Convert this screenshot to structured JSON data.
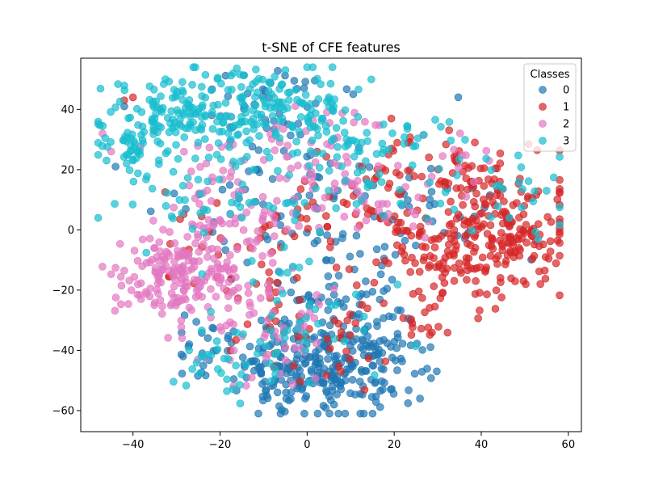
{
  "chart_data": {
    "type": "scatter",
    "title": "t-SNE of CFE features",
    "xlabel": "",
    "ylabel": "",
    "xlim": [
      -52,
      63
    ],
    "ylim": [
      -67,
      57
    ],
    "xticks": [
      -40,
      -20,
      0,
      20,
      40,
      60
    ],
    "yticks": [
      -60,
      -40,
      -20,
      0,
      20,
      40
    ],
    "grid": false,
    "legend": {
      "title": "Classes",
      "placement": "top-right"
    },
    "series": [
      {
        "name": "0",
        "color": "#1f77b4",
        "clusters": [
          {
            "cx": 5,
            "cy": -48,
            "sx": 9,
            "sy": 8,
            "n": 220
          },
          {
            "cx": 18,
            "cy": -40,
            "sx": 6,
            "sy": 6,
            "n": 40
          },
          {
            "cx": -8,
            "cy": -45,
            "sx": 6,
            "sy": 6,
            "n": 40
          },
          {
            "cx": 5,
            "cy": -20,
            "sx": 8,
            "sy": 8,
            "n": 60
          },
          {
            "cx": 0,
            "cy": 5,
            "sx": 14,
            "sy": 14,
            "n": 70
          },
          {
            "cx": -5,
            "cy": 40,
            "sx": 10,
            "sy": 8,
            "n": 40
          },
          {
            "cx": -25,
            "cy": -38,
            "sx": 4,
            "sy": 6,
            "n": 20
          },
          {
            "cx": 30,
            "cy": 5,
            "sx": 8,
            "sy": 8,
            "n": 20
          }
        ],
        "points": [
          [
            -44,
            21
          ],
          [
            -42,
            41
          ],
          [
            15,
            -45
          ]
        ]
      },
      {
        "name": "1",
        "color": "#d62728",
        "clusters": [
          {
            "cx": 45,
            "cy": 0,
            "sx": 8,
            "sy": 9,
            "n": 180
          },
          {
            "cx": 30,
            "cy": -12,
            "sx": 7,
            "sy": 7,
            "n": 80
          },
          {
            "cx": 38,
            "cy": 18,
            "sx": 6,
            "sy": 5,
            "n": 40
          },
          {
            "cx": 15,
            "cy": 10,
            "sx": 9,
            "sy": 9,
            "n": 70
          },
          {
            "cx": 5,
            "cy": -35,
            "sx": 8,
            "sy": 8,
            "n": 40
          },
          {
            "cx": -15,
            "cy": -5,
            "sx": 10,
            "sy": 12,
            "n": 40
          },
          {
            "cx": 28,
            "cy": -30,
            "sx": 4,
            "sy": 4,
            "n": 15
          },
          {
            "cx": 25,
            "cy": 30,
            "sx": 4,
            "sy": 3,
            "n": 10
          }
        ],
        "points": [
          [
            -42,
            43
          ],
          [
            -40,
            44
          ]
        ]
      },
      {
        "name": "2",
        "color": "#e377c2",
        "clusters": [
          {
            "cx": -30,
            "cy": -15,
            "sx": 7,
            "sy": 8,
            "n": 160
          },
          {
            "cx": -20,
            "cy": 0,
            "sx": 8,
            "sy": 10,
            "n": 60
          },
          {
            "cx": -10,
            "cy": -30,
            "sx": 8,
            "sy": 10,
            "n": 60
          },
          {
            "cx": -10,
            "cy": 20,
            "sx": 12,
            "sy": 10,
            "n": 60
          },
          {
            "cx": 5,
            "cy": 25,
            "sx": 10,
            "sy": 10,
            "n": 40
          },
          {
            "cx": 20,
            "cy": 10,
            "sx": 8,
            "sy": 8,
            "n": 20
          },
          {
            "cx": 38,
            "cy": 25,
            "sx": 4,
            "sy": 3,
            "n": 8
          }
        ],
        "points": [
          [
            -47,
            32
          ],
          [
            -45,
            26
          ],
          [
            -35,
            33
          ]
        ]
      },
      {
        "name": "3",
        "color": "#17becf",
        "clusters": [
          {
            "cx": -28,
            "cy": 38,
            "sx": 9,
            "sy": 8,
            "n": 150
          },
          {
            "cx": -5,
            "cy": 40,
            "sx": 10,
            "sy": 8,
            "n": 120
          },
          {
            "cx": -40,
            "cy": 28,
            "sx": 4,
            "sy": 6,
            "n": 40
          },
          {
            "cx": 10,
            "cy": 25,
            "sx": 9,
            "sy": 9,
            "n": 60
          },
          {
            "cx": -20,
            "cy": 10,
            "sx": 10,
            "sy": 10,
            "n": 50
          },
          {
            "cx": -20,
            "cy": -45,
            "sx": 6,
            "sy": 5,
            "n": 30
          },
          {
            "cx": 40,
            "cy": 15,
            "sx": 10,
            "sy": 8,
            "n": 30
          },
          {
            "cx": 0,
            "cy": -30,
            "sx": 10,
            "sy": 10,
            "n": 40
          },
          {
            "cx": 25,
            "cy": 30,
            "sx": 4,
            "sy": 4,
            "n": 15
          }
        ],
        "points": [
          [
            -17,
            52
          ],
          [
            -5,
            53
          ],
          [
            0,
            54
          ],
          [
            55,
            13
          ]
        ]
      }
    ]
  }
}
